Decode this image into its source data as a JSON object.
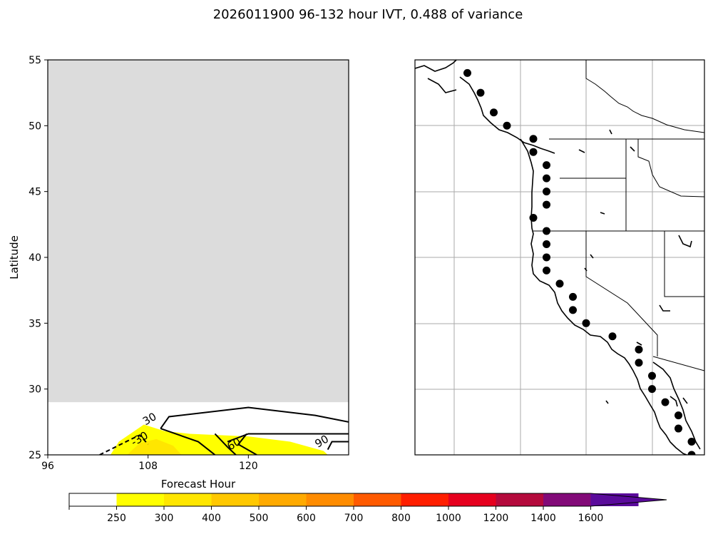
{
  "figure": {
    "title": "2026011900 96-132 hour IVT, 0.488 of variance"
  },
  "chart_data": [
    {
      "type": "heatmap",
      "xlabel": "Forecast Hour",
      "ylabel": "Latitude",
      "xlim": [
        96,
        132
      ],
      "ylim": [
        25,
        55
      ],
      "x_ticks": [
        "96",
        "108",
        "120"
      ],
      "y_ticks": [
        "25",
        "30",
        "35",
        "40",
        "45",
        "50",
        "55"
      ],
      "masked_region": {
        "lat_from": 29,
        "lat_to": 55,
        "color": "#dcdcdc"
      },
      "filled_regions": [
        {
          "level": "250-300",
          "color": "#ffff00",
          "points": [
            [
              103.5,
              25.0
            ],
            [
              104.5,
              26.0
            ],
            [
              107.5,
              27.3
            ],
            [
              110.0,
              26.8
            ],
            [
              113.0,
              26.6
            ],
            [
              120.0,
              26.4
            ],
            [
              125.0,
              26.0
            ],
            [
              129.0,
              25.3
            ],
            [
              129.5,
              25.0
            ]
          ]
        },
        {
          "level": "300-400",
          "color": "#ffe600",
          "points": [
            [
              105.5,
              25.0
            ],
            [
              107.0,
              25.9
            ],
            [
              109.0,
              26.2
            ],
            [
              111.0,
              25.7
            ],
            [
              112.0,
              25.0
            ]
          ]
        }
      ],
      "contours": [
        {
          "label": "30",
          "style": "solid",
          "points": [
            [
              109.5,
              27.0
            ],
            [
              110.5,
              27.9
            ],
            [
              120.0,
              28.6
            ],
            [
              128.0,
              28.0
            ],
            [
              132.0,
              27.5
            ]
          ],
          "label_at": [
            108.2,
            27.7
          ]
        },
        {
          "label": "-30",
          "style": "dashed",
          "points": [
            [
              102.2,
              25.0
            ],
            [
              106.0,
              26.2
            ],
            [
              107.0,
              26.5
            ],
            [
              108.0,
              25.8
            ]
          ],
          "label_at": [
            107.0,
            26.2
          ]
        },
        {
          "label": "60",
          "style": "solid",
          "points": [
            [
              109.5,
              27.0
            ],
            [
              114.0,
              26.0
            ],
            [
              116.0,
              25.0
            ]
          ],
          "label_at": null
        },
        {
          "label": "60",
          "style": "solid",
          "points": [
            [
              116.0,
              26.6
            ],
            [
              117.5,
              25.6
            ],
            [
              118.5,
              25.0
            ]
          ],
          "label_at": [
            118.3,
            25.8
          ]
        },
        {
          "label": "60",
          "style": "solid",
          "points": [
            [
              119.8,
              26.6
            ],
            [
              118.8,
              25.8
            ],
            [
              121.0,
              25.0
            ]
          ],
          "label_at": null
        },
        {
          "label": "90",
          "style": "solid",
          "points": [
            [
              117.5,
              26.0
            ],
            [
              120.0,
              26.6
            ],
            [
              132.0,
              26.6
            ]
          ],
          "label_at": null
        },
        {
          "label": "90",
          "style": "solid",
          "points": [
            [
              129.5,
              25.4
            ],
            [
              130.0,
              26.0
            ],
            [
              132.0,
              26.0
            ]
          ],
          "label_at": [
            128.8,
            26.0
          ]
        }
      ]
    },
    {
      "type": "map",
      "grid": true,
      "markers": [
        [
          -129.0,
          54.0
        ],
        [
          -128.0,
          52.5
        ],
        [
          -127.0,
          51.0
        ],
        [
          -126.0,
          50.0
        ],
        [
          -124.0,
          49.0
        ],
        [
          -124.0,
          48.0
        ],
        [
          -123.0,
          47.0
        ],
        [
          -123.0,
          46.0
        ],
        [
          -123.0,
          45.0
        ],
        [
          -123.0,
          44.0
        ],
        [
          -124.0,
          43.0
        ],
        [
          -123.0,
          42.0
        ],
        [
          -123.0,
          41.0
        ],
        [
          -123.0,
          40.0
        ],
        [
          -123.0,
          39.0
        ],
        [
          -122.0,
          38.0
        ],
        [
          -121.0,
          37.0
        ],
        [
          -121.0,
          36.0
        ],
        [
          -120.0,
          35.0
        ],
        [
          -118.0,
          34.0
        ],
        [
          -116.0,
          33.0
        ],
        [
          -116.0,
          32.0
        ],
        [
          -115.0,
          31.0
        ],
        [
          -115.0,
          30.0
        ],
        [
          -114.0,
          29.0
        ],
        [
          -113.0,
          28.0
        ],
        [
          -113.0,
          27.0
        ],
        [
          -112.0,
          26.0
        ],
        [
          -112.0,
          25.0
        ]
      ]
    }
  ],
  "colorbar": {
    "levels": [
      "250",
      "300",
      "400",
      "500",
      "600",
      "700",
      "800",
      "1000",
      "1200",
      "1400",
      "1600"
    ],
    "colors": [
      "#ffffff",
      "#ffff00",
      "#ffe600",
      "#ffc800",
      "#ffaa00",
      "#ff8c00",
      "#ff5a00",
      "#ff1e00",
      "#e6001e",
      "#b40a3c",
      "#820a78",
      "#5a0a9b"
    ],
    "extend": "max"
  }
}
